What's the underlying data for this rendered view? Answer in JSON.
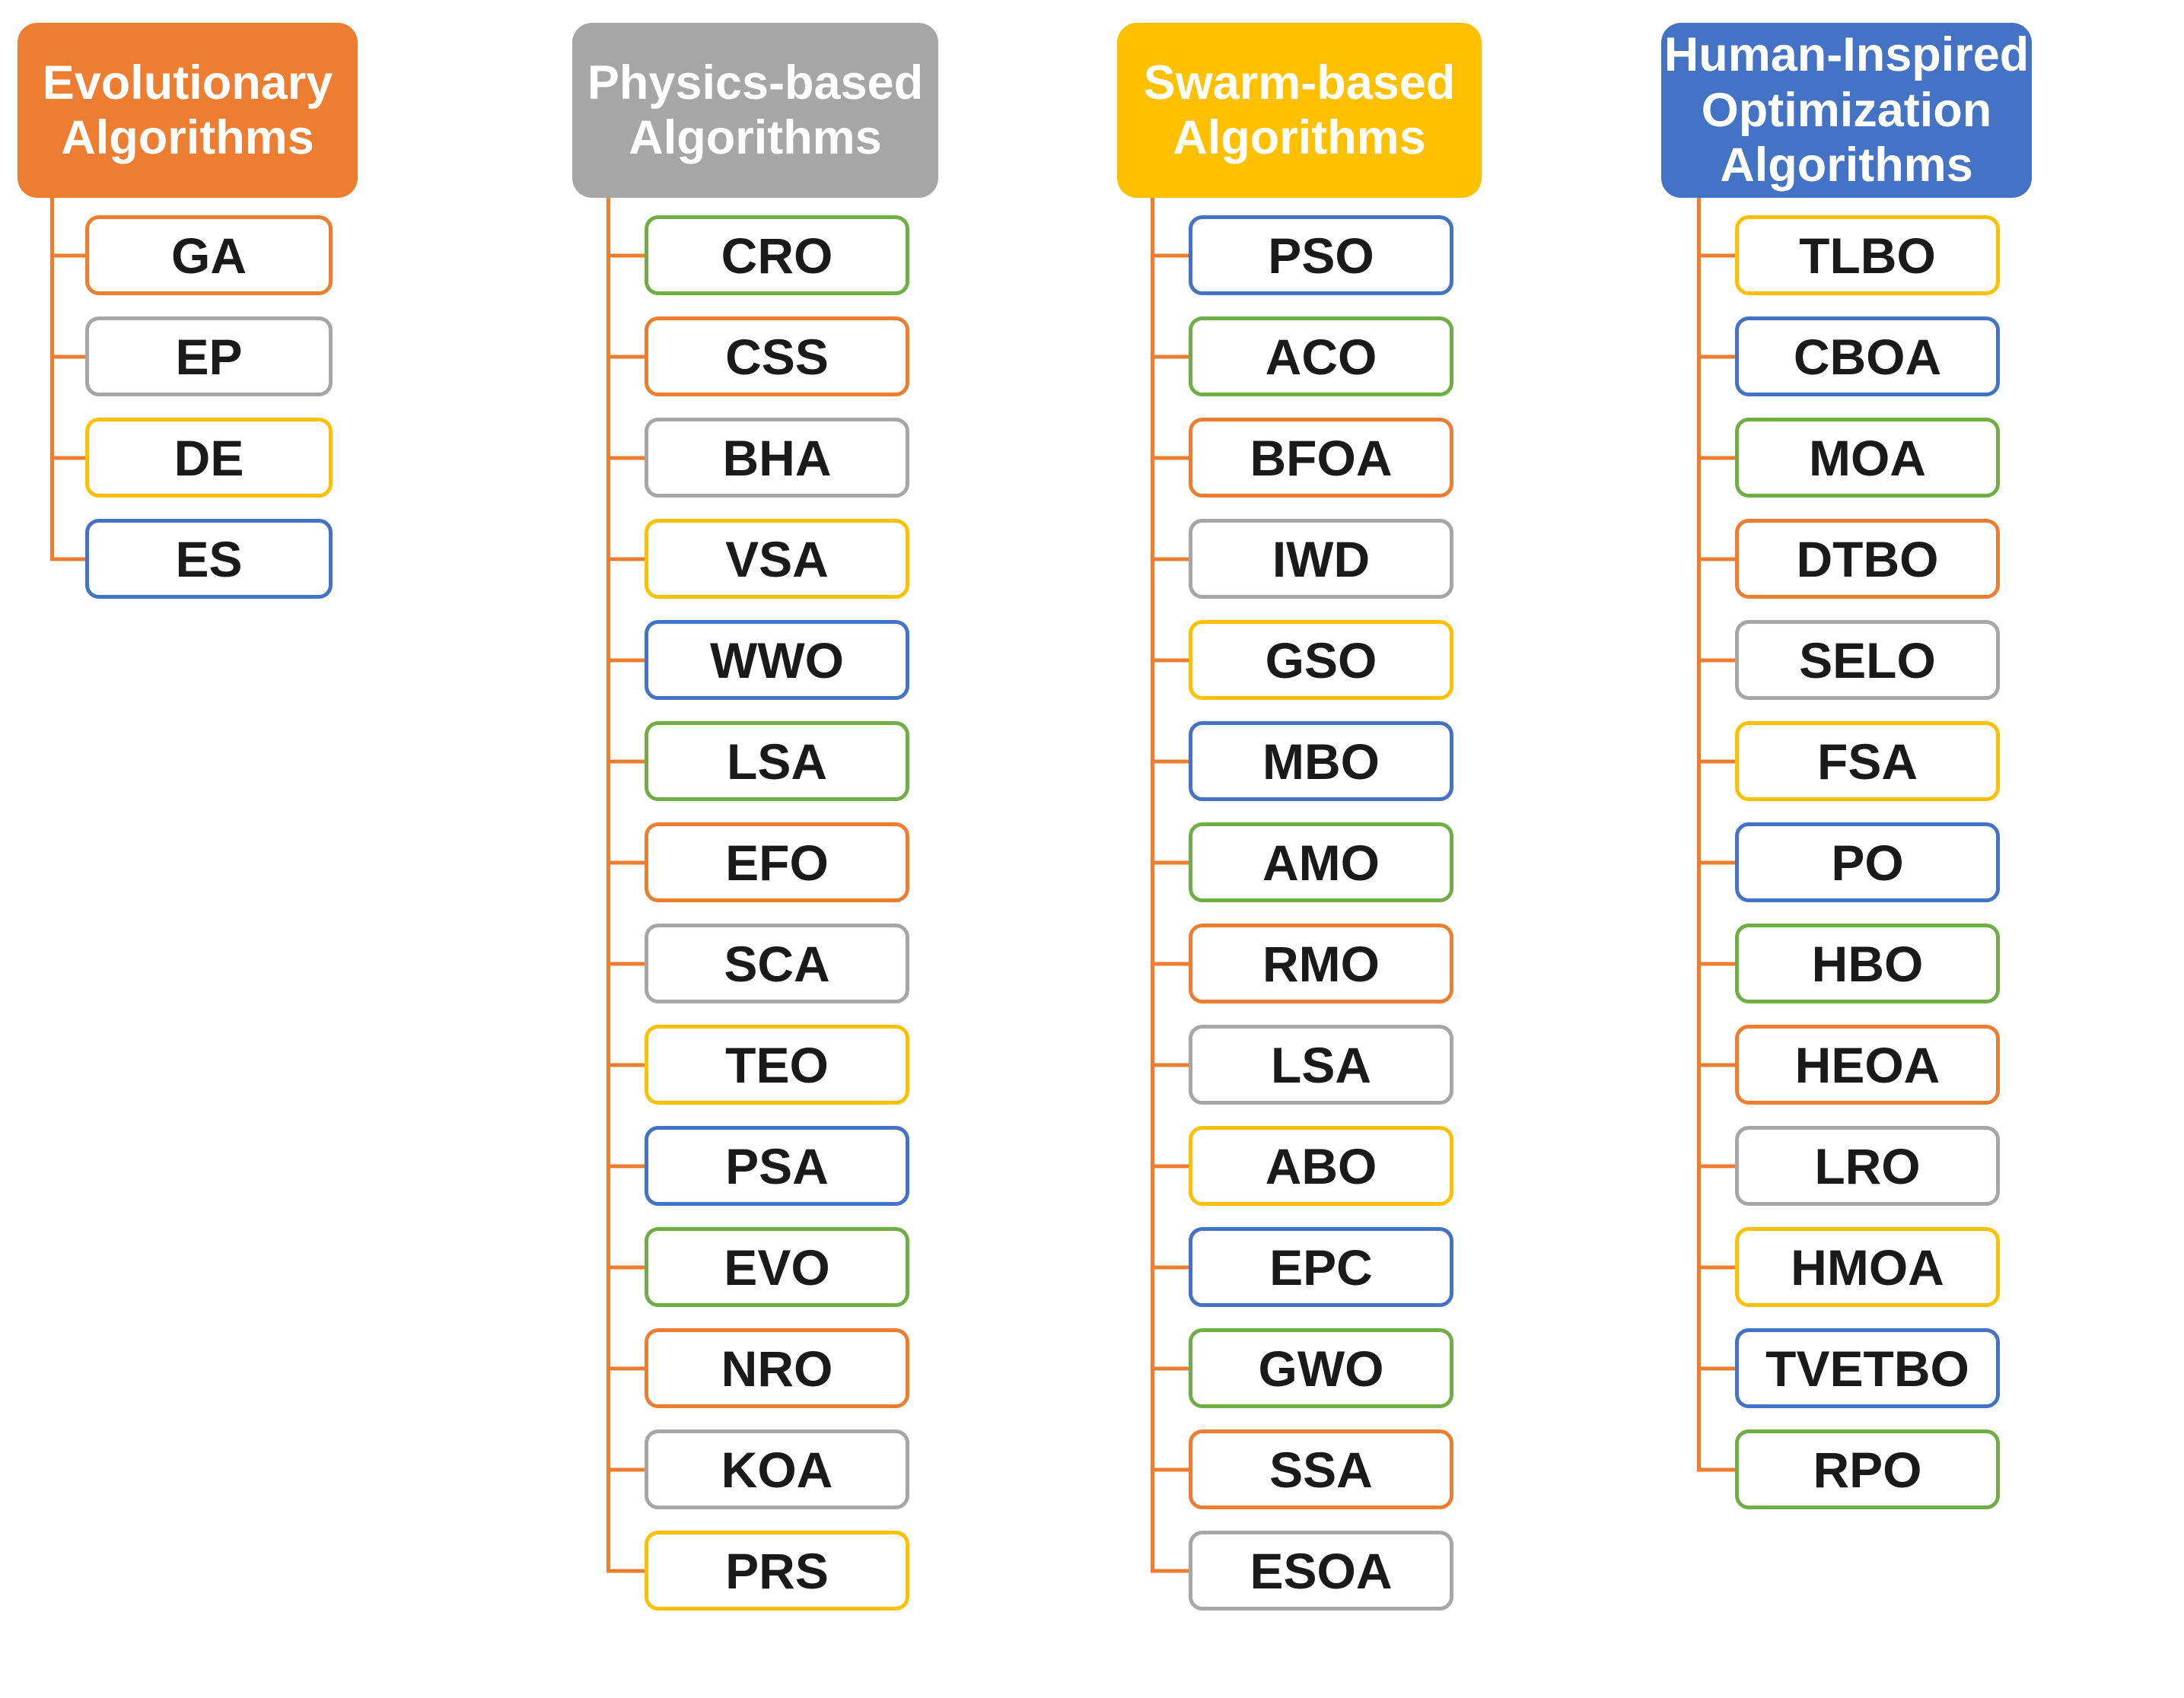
{
  "figure": {
    "background": "#FFFFFF"
  },
  "palette": {
    "orange": "#ED7D31",
    "gray": "#A6A6A6",
    "yellow": "#FFC000",
    "blue": "#4472C4",
    "green": "#70AD47",
    "connector": "#ED7D31",
    "node_fill": "#FFFFFF",
    "node_text": "#1A1A1A",
    "header_text": "#FFFFFF"
  },
  "columns": [
    {
      "id": "evolutionary",
      "title": "Evolutionary\nAlgorithms",
      "header_color": "orange",
      "items": [
        {
          "label": "GA",
          "border": "orange"
        },
        {
          "label": "EP",
          "border": "gray"
        },
        {
          "label": "DE",
          "border": "yellow"
        },
        {
          "label": "ES",
          "border": "blue"
        }
      ]
    },
    {
      "id": "physics-based",
      "title": "Physics-based\nAlgorithms",
      "header_color": "gray",
      "items": [
        {
          "label": "CRO",
          "border": "green"
        },
        {
          "label": "CSS",
          "border": "orange"
        },
        {
          "label": "BHA",
          "border": "gray"
        },
        {
          "label": "VSA",
          "border": "yellow"
        },
        {
          "label": "WWO",
          "border": "blue"
        },
        {
          "label": "LSA",
          "border": "green"
        },
        {
          "label": "EFO",
          "border": "orange"
        },
        {
          "label": "SCA",
          "border": "gray"
        },
        {
          "label": "TEO",
          "border": "yellow"
        },
        {
          "label": "PSA",
          "border": "blue"
        },
        {
          "label": "EVO",
          "border": "green"
        },
        {
          "label": "NRO",
          "border": "orange"
        },
        {
          "label": "KOA",
          "border": "gray"
        },
        {
          "label": "PRS",
          "border": "yellow"
        }
      ]
    },
    {
      "id": "swarm-based",
      "title": "Swarm-based\nAlgorithms",
      "header_color": "yellow",
      "items": [
        {
          "label": "PSO",
          "border": "blue"
        },
        {
          "label": "ACO",
          "border": "green"
        },
        {
          "label": "BFOA",
          "border": "orange"
        },
        {
          "label": "IWD",
          "border": "gray"
        },
        {
          "label": "GSO",
          "border": "yellow"
        },
        {
          "label": "MBO",
          "border": "blue"
        },
        {
          "label": "AMO",
          "border": "green"
        },
        {
          "label": "RMO",
          "border": "orange"
        },
        {
          "label": "LSA",
          "border": "gray"
        },
        {
          "label": "ABO",
          "border": "yellow"
        },
        {
          "label": "EPC",
          "border": "blue"
        },
        {
          "label": "GWO",
          "border": "green"
        },
        {
          "label": "SSA",
          "border": "orange"
        },
        {
          "label": "ESOA",
          "border": "gray"
        }
      ]
    },
    {
      "id": "human-inspired",
      "title": "Human-Inspired\nOptimization\nAlgorithms",
      "header_color": "blue",
      "items": [
        {
          "label": "TLBO",
          "border": "yellow"
        },
        {
          "label": "CBOA",
          "border": "blue"
        },
        {
          "label": "MOA",
          "border": "green"
        },
        {
          "label": "DTBO",
          "border": "orange"
        },
        {
          "label": "SELO",
          "border": "gray"
        },
        {
          "label": "FSA",
          "border": "yellow"
        },
        {
          "label": "PO",
          "border": "blue"
        },
        {
          "label": "HBO",
          "border": "green"
        },
        {
          "label": "HEOA",
          "border": "orange"
        },
        {
          "label": "LRO",
          "border": "gray"
        },
        {
          "label": "HMOA",
          "border": "yellow"
        },
        {
          "label": "TVETBO",
          "border": "blue"
        },
        {
          "label": "RPO",
          "border": "green"
        }
      ]
    }
  ]
}
